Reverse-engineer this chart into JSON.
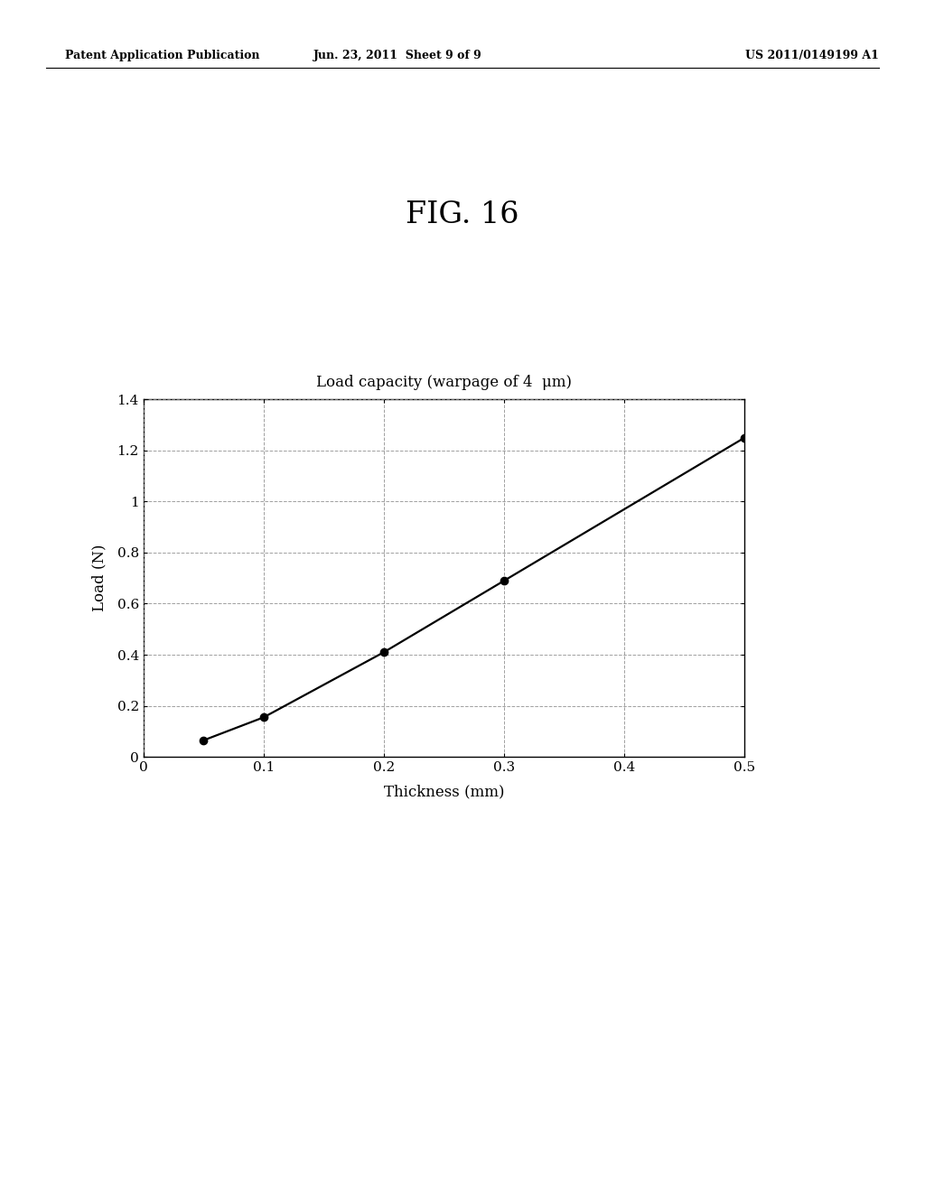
{
  "fig_label": "FIG. 16",
  "header_left": "Patent Application Publication",
  "header_center": "Jun. 23, 2011  Sheet 9 of 9",
  "header_right": "US 2011/0149199 A1",
  "chart_title": "Load capacity (warpage of 4  μm)",
  "xlabel": "Thickness (mm)",
  "ylabel": "Load (N)",
  "x_data": [
    0.05,
    0.1,
    0.2,
    0.3,
    0.5
  ],
  "y_data": [
    0.065,
    0.155,
    0.41,
    0.69,
    1.25
  ],
  "xlim": [
    0,
    0.5
  ],
  "ylim": [
    0,
    1.4
  ],
  "xticks": [
    0,
    0.1,
    0.2,
    0.3,
    0.4,
    0.5
  ],
  "yticks": [
    0,
    0.2,
    0.4,
    0.6,
    0.8,
    1.0,
    1.2,
    1.4
  ],
  "xtick_labels": [
    "0",
    "0.1",
    "0.2",
    "0.3",
    "0.4",
    "0.5"
  ],
  "ytick_labels": [
    "0",
    "0.2",
    "0.4",
    "0.6",
    "0.8",
    "1",
    "1.2",
    "1.4"
  ],
  "line_color": "#000000",
  "marker_color": "#000000",
  "bg_color": "#ffffff",
  "grid_color": "#888888",
  "marker_size": 6,
  "line_width": 1.6,
  "header_fontsize": 9,
  "fig_label_fontsize": 24,
  "title_fontsize": 12,
  "tick_fontsize": 11,
  "label_fontsize": 12
}
